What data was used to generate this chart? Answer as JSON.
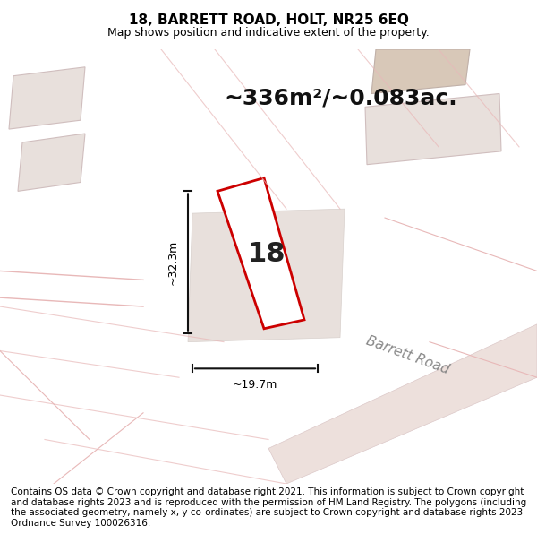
{
  "title": "18, BARRETT ROAD, HOLT, NR25 6EQ",
  "subtitle": "Map shows position and indicative extent of the property.",
  "area_text": "~336m²/~0.083ac.",
  "label_number": "18",
  "dim_width": "~19.7m",
  "dim_height": "~32.3m",
  "road_label": "Barrett Road",
  "footer": "Contains OS data © Crown copyright and database right 2021. This information is subject to Crown copyright and database rights 2023 and is reproduced with the permission of HM Land Registry. The polygons (including the associated geometry, namely x, y co-ordinates) are subject to Crown copyright and database rights 2023 Ordnance Survey 100026316.",
  "bg_color": "#f0ebe6",
  "map_bg": "#f5f0eb",
  "road_fill": "#e8e0d8",
  "building_fill": "#d8cfc8",
  "plot_outline_color": "#cc0000",
  "plot_fill": "#ffffff",
  "street_color": "#e8ddd5",
  "dim_line_color": "#111111",
  "road_label_color": "#888888",
  "footer_bg": "#ffffff",
  "title_fontsize": 11,
  "subtitle_fontsize": 9,
  "area_fontsize": 18,
  "number_fontsize": 22,
  "dim_fontsize": 9,
  "road_label_fontsize": 11,
  "footer_fontsize": 7.5
}
